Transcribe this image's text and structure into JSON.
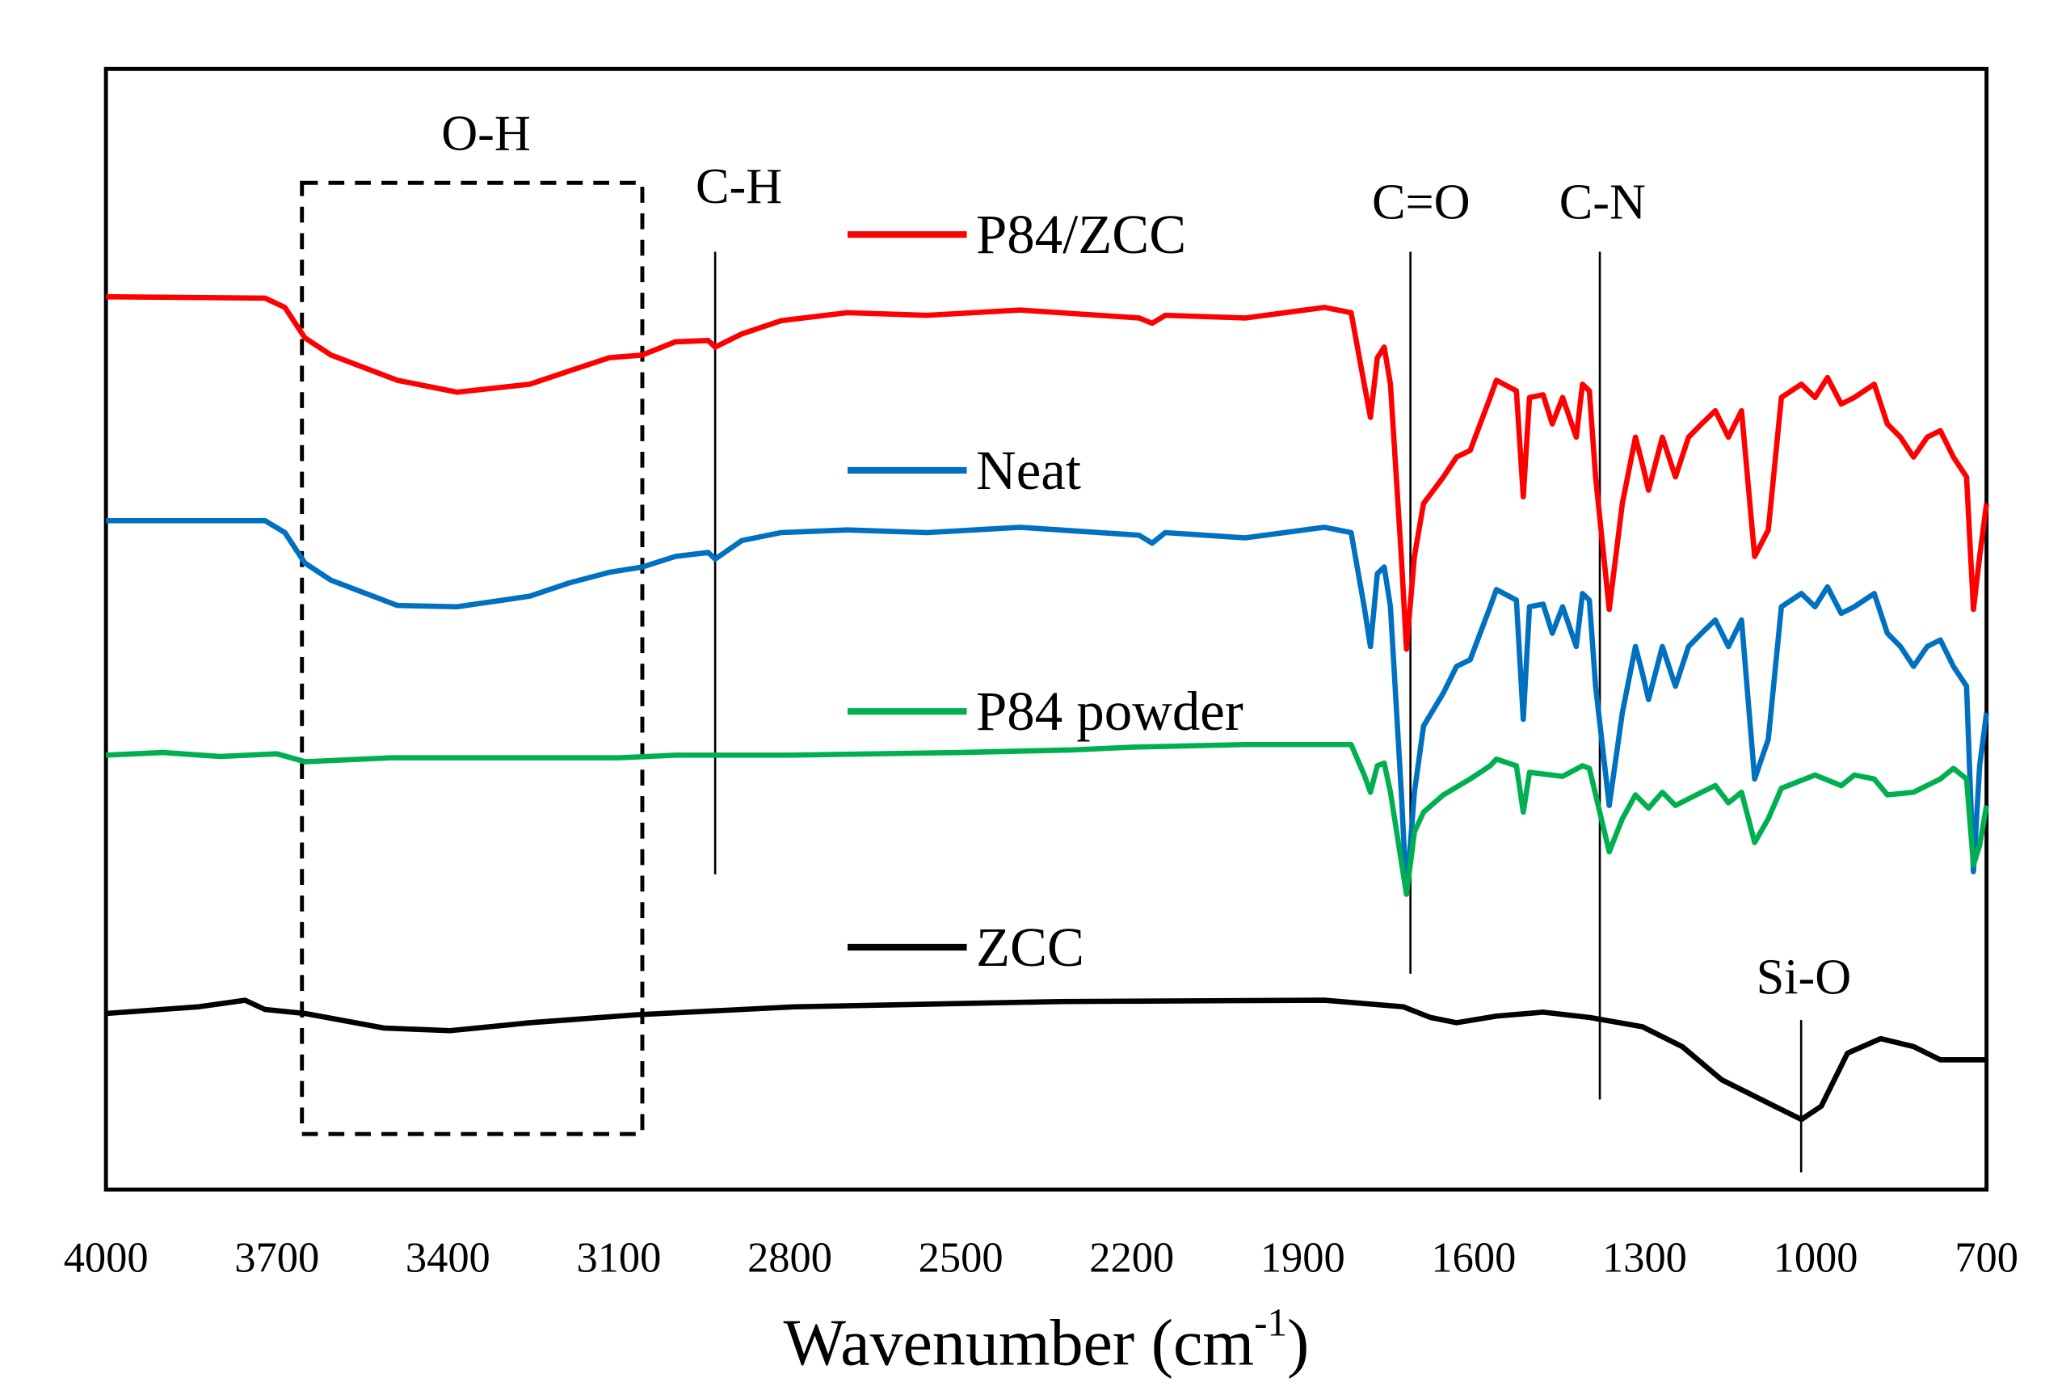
{
  "chart_data": {
    "type": "line",
    "title": "",
    "xlabel_main": "Wavenumber (cm",
    "xlabel_sup": "-1",
    "xlabel_end": ")",
    "ylabel": "",
    "xlim": [
      4000,
      700
    ],
    "ylim": [
      0,
      846
    ],
    "x_reversed": true,
    "grid": false,
    "x_ticks": [
      "4000",
      "3700",
      "3400",
      "3100",
      "2800",
      "2500",
      "2200",
      "1900",
      "1600",
      "1300",
      "1000",
      "700"
    ],
    "x_tick_values": [
      4000,
      3700,
      3400,
      3100,
      2800,
      2500,
      2200,
      1900,
      1600,
      1300,
      1000,
      700
    ],
    "legend_position": "center-inside",
    "series": [
      {
        "name": "P84/ZCC",
        "color": "#ff0000",
        "points": [
          [
            4000,
            674
          ],
          [
            3721,
            673
          ],
          [
            3686,
            666
          ],
          [
            3651,
            643
          ],
          [
            3605,
            630
          ],
          [
            3489,
            611
          ],
          [
            3384,
            602
          ],
          [
            3256,
            608
          ],
          [
            3187,
            618
          ],
          [
            3117,
            628
          ],
          [
            3059,
            630
          ],
          [
            3001,
            640
          ],
          [
            2943,
            641
          ],
          [
            2931,
            636
          ],
          [
            2884,
            646
          ],
          [
            2815,
            656
          ],
          [
            2699,
            662
          ],
          [
            2559,
            660
          ],
          [
            2396,
            664
          ],
          [
            2187,
            658
          ],
          [
            2164,
            654
          ],
          [
            2141,
            660
          ],
          [
            2001,
            658
          ],
          [
            1862,
            666
          ],
          [
            1815,
            662
          ],
          [
            1792,
            608
          ],
          [
            1781,
            583
          ],
          [
            1769,
            628
          ],
          [
            1757,
            636
          ],
          [
            1746,
            608
          ],
          [
            1727,
            478
          ],
          [
            1718,
            408
          ],
          [
            1704,
            478
          ],
          [
            1688,
            518
          ],
          [
            1653,
            538
          ],
          [
            1630,
            553
          ],
          [
            1606,
            558
          ],
          [
            1571,
            598
          ],
          [
            1560,
            611
          ],
          [
            1525,
            603
          ],
          [
            1513,
            523
          ],
          [
            1502,
            598
          ],
          [
            1478,
            600
          ],
          [
            1462,
            578
          ],
          [
            1444,
            598
          ],
          [
            1420,
            568
          ],
          [
            1409,
            608
          ],
          [
            1397,
            603
          ],
          [
            1386,
            538
          ],
          [
            1362,
            438
          ],
          [
            1339,
            518
          ],
          [
            1316,
            568
          ],
          [
            1304,
            548
          ],
          [
            1293,
            528
          ],
          [
            1269,
            568
          ],
          [
            1246,
            538
          ],
          [
            1223,
            568
          ],
          [
            1200,
            578
          ],
          [
            1176,
            588
          ],
          [
            1153,
            568
          ],
          [
            1130,
            588
          ],
          [
            1107,
            478
          ],
          [
            1083,
            498
          ],
          [
            1060,
            598
          ],
          [
            1025,
            608
          ],
          [
            1001,
            598
          ],
          [
            979,
            613
          ],
          [
            955,
            593
          ],
          [
            932,
            598
          ],
          [
            897,
            608
          ],
          [
            874,
            578
          ],
          [
            851,
            568
          ],
          [
            828,
            553
          ],
          [
            804,
            568
          ],
          [
            781,
            573
          ],
          [
            758,
            553
          ],
          [
            735,
            538
          ],
          [
            723,
            438
          ],
          [
            712,
            478
          ],
          [
            700,
            518
          ]
        ]
      },
      {
        "name": "Neat",
        "color": "#0070c0",
        "points": [
          [
            4000,
            505
          ],
          [
            3721,
            505
          ],
          [
            3686,
            496
          ],
          [
            3651,
            473
          ],
          [
            3605,
            460
          ],
          [
            3489,
            441
          ],
          [
            3384,
            440
          ],
          [
            3256,
            448
          ],
          [
            3187,
            458
          ],
          [
            3117,
            466
          ],
          [
            3059,
            470
          ],
          [
            3001,
            478
          ],
          [
            2943,
            481
          ],
          [
            2931,
            476
          ],
          [
            2884,
            490
          ],
          [
            2815,
            496
          ],
          [
            2699,
            498
          ],
          [
            2559,
            496
          ],
          [
            2396,
            500
          ],
          [
            2187,
            494
          ],
          [
            2164,
            488
          ],
          [
            2141,
            496
          ],
          [
            2001,
            492
          ],
          [
            1862,
            500
          ],
          [
            1815,
            496
          ],
          [
            1792,
            440
          ],
          [
            1781,
            410
          ],
          [
            1769,
            465
          ],
          [
            1757,
            470
          ],
          [
            1746,
            440
          ],
          [
            1727,
            300
          ],
          [
            1718,
            223
          ],
          [
            1704,
            300
          ],
          [
            1688,
            350
          ],
          [
            1653,
            375
          ],
          [
            1630,
            395
          ],
          [
            1606,
            400
          ],
          [
            1571,
            440
          ],
          [
            1560,
            453
          ],
          [
            1525,
            445
          ],
          [
            1513,
            355
          ],
          [
            1502,
            440
          ],
          [
            1478,
            442
          ],
          [
            1462,
            420
          ],
          [
            1444,
            440
          ],
          [
            1420,
            410
          ],
          [
            1409,
            450
          ],
          [
            1397,
            445
          ],
          [
            1386,
            380
          ],
          [
            1362,
            290
          ],
          [
            1339,
            360
          ],
          [
            1316,
            410
          ],
          [
            1304,
            390
          ],
          [
            1293,
            370
          ],
          [
            1269,
            410
          ],
          [
            1246,
            380
          ],
          [
            1223,
            410
          ],
          [
            1200,
            420
          ],
          [
            1176,
            430
          ],
          [
            1153,
            410
          ],
          [
            1130,
            430
          ],
          [
            1107,
            310
          ],
          [
            1083,
            340
          ],
          [
            1060,
            440
          ],
          [
            1025,
            450
          ],
          [
            1001,
            440
          ],
          [
            979,
            455
          ],
          [
            955,
            435
          ],
          [
            932,
            440
          ],
          [
            897,
            450
          ],
          [
            874,
            420
          ],
          [
            851,
            410
          ],
          [
            828,
            395
          ],
          [
            804,
            410
          ],
          [
            781,
            415
          ],
          [
            758,
            395
          ],
          [
            735,
            380
          ],
          [
            723,
            240
          ],
          [
            712,
            320
          ],
          [
            700,
            360
          ]
        ]
      },
      {
        "name": "P84 powder",
        "color": "#00b050",
        "points": [
          [
            4000,
            328
          ],
          [
            3900,
            330
          ],
          [
            3800,
            327
          ],
          [
            3700,
            329
          ],
          [
            3650,
            323
          ],
          [
            3500,
            326
          ],
          [
            3300,
            326
          ],
          [
            3100,
            326
          ],
          [
            3000,
            328
          ],
          [
            2800,
            328
          ],
          [
            2500,
            330
          ],
          [
            2300,
            332
          ],
          [
            2200,
            334
          ],
          [
            2000,
            336
          ],
          [
            1862,
            336
          ],
          [
            1815,
            336
          ],
          [
            1792,
            313
          ],
          [
            1781,
            300
          ],
          [
            1769,
            320
          ],
          [
            1757,
            322
          ],
          [
            1746,
            300
          ],
          [
            1718,
            223
          ],
          [
            1704,
            270
          ],
          [
            1688,
            285
          ],
          [
            1653,
            298
          ],
          [
            1606,
            310
          ],
          [
            1571,
            320
          ],
          [
            1560,
            325
          ],
          [
            1525,
            320
          ],
          [
            1513,
            285
          ],
          [
            1502,
            315
          ],
          [
            1444,
            312
          ],
          [
            1409,
            320
          ],
          [
            1397,
            318
          ],
          [
            1362,
            255
          ],
          [
            1339,
            280
          ],
          [
            1316,
            298
          ],
          [
            1293,
            288
          ],
          [
            1269,
            300
          ],
          [
            1246,
            290
          ],
          [
            1200,
            300
          ],
          [
            1176,
            305
          ],
          [
            1153,
            292
          ],
          [
            1130,
            300
          ],
          [
            1107,
            262
          ],
          [
            1083,
            280
          ],
          [
            1060,
            303
          ],
          [
            1001,
            313
          ],
          [
            955,
            305
          ],
          [
            932,
            313
          ],
          [
            897,
            310
          ],
          [
            874,
            298
          ],
          [
            828,
            300
          ],
          [
            781,
            310
          ],
          [
            758,
            318
          ],
          [
            735,
            310
          ],
          [
            723,
            245
          ],
          [
            712,
            260
          ],
          [
            700,
            290
          ]
        ]
      },
      {
        "name": "ZCC",
        "color": "#000000",
        "points": [
          [
            4000,
            133
          ],
          [
            3838,
            138
          ],
          [
            3756,
            143
          ],
          [
            3721,
            136
          ],
          [
            3651,
            133
          ],
          [
            3512,
            122
          ],
          [
            3396,
            120
          ],
          [
            3256,
            126
          ],
          [
            3070,
            132
          ],
          [
            2792,
            138
          ],
          [
            2327,
            142
          ],
          [
            1862,
            143
          ],
          [
            1723,
            138
          ],
          [
            1676,
            130
          ],
          [
            1630,
            126
          ],
          [
            1560,
            131
          ],
          [
            1478,
            134
          ],
          [
            1397,
            130
          ],
          [
            1304,
            123
          ],
          [
            1234,
            108
          ],
          [
            1165,
            83
          ],
          [
            1072,
            63
          ],
          [
            1025,
            53
          ],
          [
            990,
            63
          ],
          [
            944,
            103
          ],
          [
            886,
            114
          ],
          [
            828,
            108
          ],
          [
            781,
            98
          ],
          [
            700,
            98
          ]
        ]
      }
    ],
    "annotations": [
      {
        "label": "O-H",
        "type": "dashed-box",
        "x_range": [
          3656,
          3059
        ]
      },
      {
        "label": "C-H",
        "type": "vline",
        "x": 2931
      },
      {
        "label": "C=O",
        "type": "vline",
        "x": 1711
      },
      {
        "label": "C-N",
        "type": "vline",
        "x": 1379
      },
      {
        "label": "Si-O",
        "type": "vline",
        "x": 1025
      }
    ]
  }
}
